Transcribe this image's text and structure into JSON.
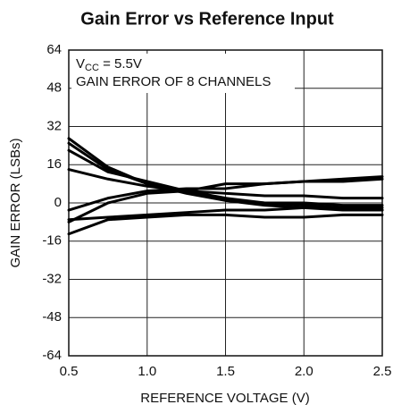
{
  "chart_data": {
    "type": "line",
    "title": "Gain Error vs Reference Input",
    "x_label": "REFERENCE VOLTAGE (V)",
    "y_label": "GAIN ERROR (LSBs)",
    "condition": {
      "main": "V",
      "sub": "CC",
      "rest": " = 5.5V"
    },
    "note": "GAIN ERROR OF 8 CHANNELS",
    "x": [
      0.5,
      0.75,
      1.0,
      1.25,
      1.5,
      1.75,
      2.0,
      2.25,
      2.5
    ],
    "series": [
      {
        "color": "#000000",
        "values": [
          27,
          15,
          8,
          4,
          1,
          0,
          0,
          -1,
          -1
        ]
      },
      {
        "color": "#000000",
        "values": [
          25,
          14,
          8,
          5,
          2,
          0,
          -1,
          -2,
          -2
        ]
      },
      {
        "color": "#000000",
        "values": [
          22,
          13,
          9,
          5,
          1,
          -1,
          -2,
          -3,
          -3
        ]
      },
      {
        "color": "#000000",
        "values": [
          14,
          10,
          7,
          5,
          8,
          8,
          9,
          9,
          10
        ]
      },
      {
        "color": "#000000",
        "values": [
          -3,
          2,
          5,
          6,
          6,
          8,
          9,
          10,
          11
        ]
      },
      {
        "color": "#000000",
        "values": [
          -8,
          0,
          4,
          5,
          4,
          3,
          3,
          2,
          2
        ]
      },
      {
        "color": "#000000",
        "values": [
          -7,
          -6,
          -5,
          -4,
          -3,
          -3,
          -2,
          -2,
          -3
        ]
      },
      {
        "color": "#000000",
        "values": [
          -13,
          -7,
          -6,
          -5,
          -5,
          -6,
          -6,
          -5,
          -5
        ]
      }
    ],
    "xlim": [
      0.5,
      2.5
    ],
    "ylim": [
      -64,
      64
    ],
    "xticks": [
      0.5,
      {
        "value": 1,
        "label": "1.0"
      },
      1.5,
      {
        "value": 2,
        "label": "2.0"
      },
      2.5
    ],
    "yticks": [
      -64,
      -48,
      -32,
      -16,
      0,
      16,
      32,
      48,
      64
    ],
    "grid": true
  }
}
